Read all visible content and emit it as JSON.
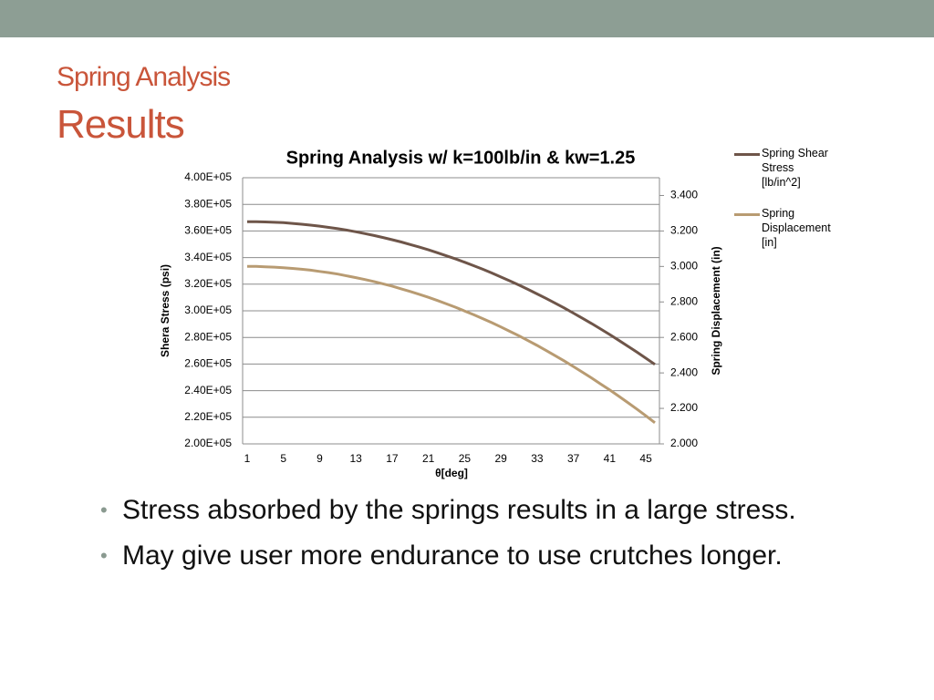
{
  "slide": {
    "title": "Spring Analysis",
    "subtitle": "Results",
    "bullets": [
      "Stress absorbed by the springs results in a large stress.",
      "May give user more endurance to use crutches longer."
    ]
  },
  "chart_data": {
    "type": "line",
    "title": "Spring Analysis w/ k=100lb/in & kw=1.25",
    "x_label": "θ[deg]",
    "y_label": "Shera Stress (psi)",
    "y2_label": "Spring Displacement (in)",
    "categories": [
      "1",
      null,
      null,
      null,
      "5",
      null,
      null,
      null,
      "9",
      null,
      null,
      null,
      "13",
      null,
      null,
      null,
      "17",
      null,
      null,
      null,
      "21",
      null,
      null,
      null,
      "25",
      null,
      null,
      null,
      "29",
      null,
      null,
      null,
      "33",
      null,
      null,
      null,
      "37",
      null,
      null,
      null,
      "41",
      null,
      null,
      null,
      "45",
      null
    ],
    "ylim": [
      200000,
      400000
    ],
    "yticks": [
      {
        "value": 200000,
        "label": "2.00E+05"
      },
      {
        "value": 220000,
        "label": "2.20E+05"
      },
      {
        "value": 240000,
        "label": "2.40E+05"
      },
      {
        "value": 260000,
        "label": "2.60E+05"
      },
      {
        "value": 280000,
        "label": "2.80E+05"
      },
      {
        "value": 300000,
        "label": "3.00E+05"
      },
      {
        "value": 320000,
        "label": "3.20E+05"
      },
      {
        "value": 340000,
        "label": "3.40E+05"
      },
      {
        "value": 360000,
        "label": "3.60E+05"
      },
      {
        "value": 380000,
        "label": "3.80E+05"
      },
      {
        "value": 400000,
        "label": "4.00E+05"
      }
    ],
    "y2lim": [
      2.0,
      3.5
    ],
    "y2ticks": [
      {
        "value": 2.0,
        "label": "2.000"
      },
      {
        "value": 2.2,
        "label": "2.200"
      },
      {
        "value": 2.4,
        "label": "2.400"
      },
      {
        "value": 2.6,
        "label": "2.600"
      },
      {
        "value": 2.8,
        "label": "2.800"
      },
      {
        "value": 3.0,
        "label": "3.000"
      },
      {
        "value": 3.2,
        "label": "3.200"
      },
      {
        "value": 3.4,
        "label": "3.400"
      }
    ],
    "grid": true,
    "legend": "right",
    "series": [
      {
        "name": "Spring Shear Stress [lb/in^2]",
        "color": "#6e5549",
        "values": [
          367000,
          366900,
          366800,
          366500,
          366200,
          365700,
          365100,
          364400,
          363600,
          362700,
          361700,
          360600,
          359400,
          358000,
          356600,
          355100,
          353400,
          351700,
          349800,
          347900,
          345800,
          343600,
          341300,
          339000,
          336500,
          333900,
          331200,
          328400,
          325400,
          322400,
          319300,
          316100,
          312700,
          309300,
          305700,
          302100,
          298300,
          294400,
          290500,
          286400,
          282200,
          277900,
          273500,
          269000,
          264400,
          259700
        ]
      },
      {
        "name": "Spring Displacement [in]",
        "color": "#b89b72",
        "axis": "y2",
        "values": [
          3.0,
          3.0,
          2.998,
          2.996,
          2.993,
          2.989,
          2.984,
          2.979,
          2.972,
          2.965,
          2.957,
          2.947,
          2.937,
          2.926,
          2.915,
          2.902,
          2.889,
          2.874,
          2.859,
          2.843,
          2.826,
          2.808,
          2.789,
          2.77,
          2.749,
          2.728,
          2.706,
          2.683,
          2.659,
          2.634,
          2.609,
          2.582,
          2.555,
          2.526,
          2.497,
          2.467,
          2.436,
          2.404,
          2.372,
          2.338,
          2.304,
          2.269,
          2.233,
          2.196,
          2.158,
          2.119
        ]
      }
    ]
  }
}
